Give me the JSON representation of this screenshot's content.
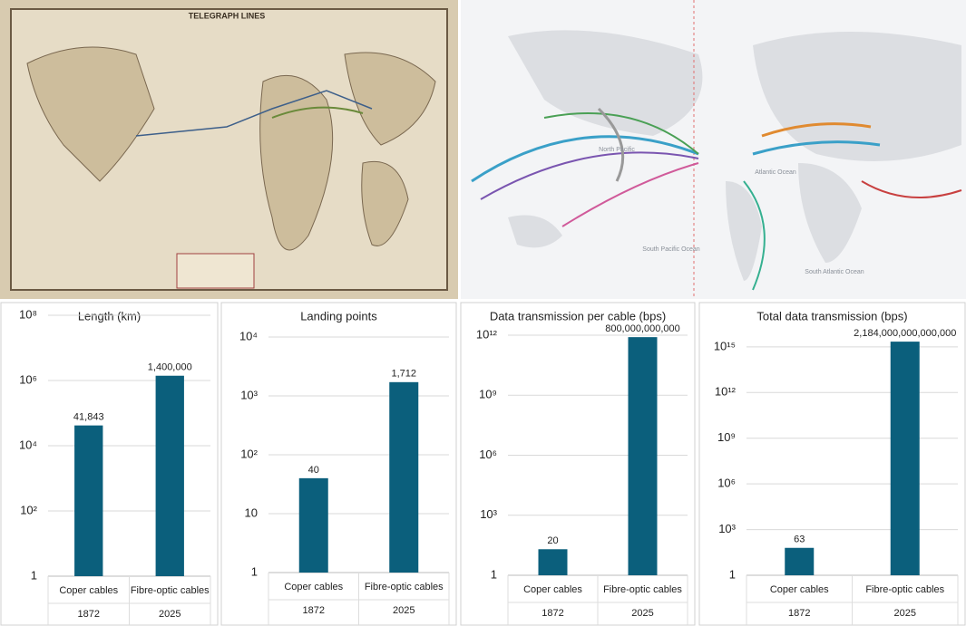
{
  "maps": {
    "old_map_title": "TELEGRAPH LINES",
    "ocean_labels": [
      "North Pacific",
      "Atlantic Ocean",
      "South Pacific Ocean",
      "South Atlantic Ocean"
    ]
  },
  "chart_data": [
    {
      "type": "bar",
      "title": "Length (km)",
      "categories": [
        "Coper cables",
        "Fibre-optic cables"
      ],
      "years": [
        "1872",
        "2025"
      ],
      "values": [
        41843,
        1400000
      ],
      "value_labels": [
        "41,843",
        "1,400,000"
      ],
      "color": "#0b5f7c",
      "log_y": true,
      "grid": true,
      "ylim": [
        1,
        100000000
      ],
      "yticks": [
        1,
        {
          "value": 100,
          "label": "10²"
        },
        {
          "value": 10000,
          "label": "10⁴"
        },
        {
          "value": 1000000,
          "label": "10⁶"
        },
        {
          "value": 100000000,
          "label": "10⁸"
        }
      ]
    },
    {
      "type": "bar",
      "title": "Landing points",
      "categories": [
        "Coper cables",
        "Fibre-optic cables"
      ],
      "years": [
        "1872",
        "2025"
      ],
      "values": [
        40,
        1712
      ],
      "value_labels": [
        "40",
        "1,712"
      ],
      "color": "#0b5f7c",
      "log_y": true,
      "grid": true,
      "ylim": [
        1,
        10000
      ],
      "yticks": [
        1,
        10,
        {
          "value": 100,
          "label": "10²"
        },
        {
          "value": 1000,
          "label": "10³"
        },
        {
          "value": 10000,
          "label": "10⁴"
        }
      ]
    },
    {
      "type": "bar",
      "title": "Data transmission per cable (bps)",
      "categories": [
        "Coper cables",
        "Fibre-optic cables"
      ],
      "years": [
        "1872",
        "2025"
      ],
      "values": [
        20,
        800000000000
      ],
      "value_labels": [
        "20",
        "800,000,000,000"
      ],
      "color": "#0b5f7c",
      "log_y": true,
      "grid": true,
      "ylim": [
        1,
        1000000000000
      ],
      "yticks": [
        1,
        {
          "value": 1000,
          "label": "10³"
        },
        {
          "value": 1000000,
          "label": "10⁶"
        },
        {
          "value": 1000000000,
          "label": "10⁹"
        },
        {
          "value": 1000000000000,
          "label": "10¹²"
        }
      ]
    },
    {
      "type": "bar",
      "title": "Total data transmission (bps)",
      "categories": [
        "Coper cables",
        "Fibre-optic cables"
      ],
      "years": [
        "1872",
        "2025"
      ],
      "values": [
        63,
        2184000000000000
      ],
      "value_labels": [
        "63",
        "2,184,000,000,000,000"
      ],
      "color": "#0b5f7c",
      "log_y": true,
      "grid": true,
      "ylim": [
        1,
        10000000000000000
      ],
      "yticks": [
        1,
        {
          "value": 1000,
          "label": "10³"
        },
        {
          "value": 1000000,
          "label": "10⁶"
        },
        {
          "value": 1000000000,
          "label": "10⁹"
        },
        {
          "value": 1000000000000,
          "label": "10¹²"
        },
        {
          "value": 1000000000000000,
          "label": "10¹⁵"
        }
      ]
    }
  ]
}
